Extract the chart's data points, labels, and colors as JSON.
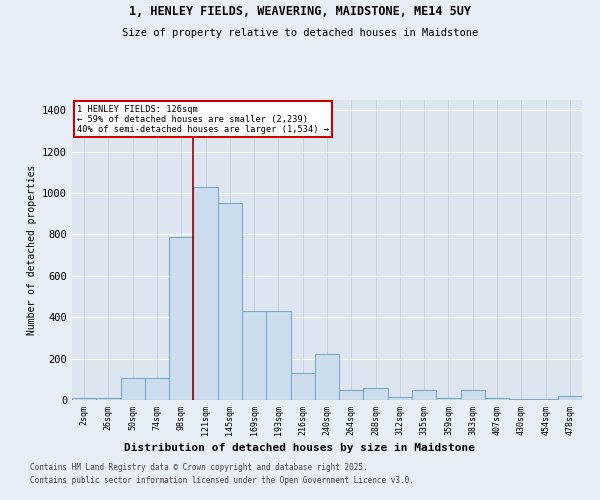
{
  "title1": "1, HENLEY FIELDS, WEAVERING, MAIDSTONE, ME14 5UY",
  "title2": "Size of property relative to detached houses in Maidstone",
  "xlabel": "Distribution of detached houses by size in Maidstone",
  "ylabel": "Number of detached properties",
  "categories": [
    "2sqm",
    "26sqm",
    "50sqm",
    "74sqm",
    "98sqm",
    "121sqm",
    "145sqm",
    "169sqm",
    "193sqm",
    "216sqm",
    "240sqm",
    "264sqm",
    "288sqm",
    "312sqm",
    "335sqm",
    "359sqm",
    "383sqm",
    "407sqm",
    "430sqm",
    "454sqm",
    "478sqm"
  ],
  "values": [
    10,
    10,
    105,
    105,
    790,
    1030,
    950,
    430,
    430,
    130,
    220,
    50,
    60,
    15,
    50,
    10,
    50,
    10,
    5,
    5,
    20
  ],
  "bar_color": "#ccdded",
  "bar_edge_color": "#7aaac8",
  "vline_color": "#990000",
  "vline_x_index": 5,
  "annotation_title": "1 HENLEY FIELDS: 126sqm",
  "annotation_line1": "← 59% of detached houses are smaller (2,239)",
  "annotation_line2": "40% of semi-detached houses are larger (1,534) →",
  "annotation_box_color": "white",
  "annotation_box_edge": "#cc0000",
  "footnote1": "Contains HM Land Registry data © Crown copyright and database right 2025.",
  "footnote2": "Contains public sector information licensed under the Open Government Licence v3.0.",
  "ylim": [
    0,
    1450
  ],
  "yticks": [
    0,
    200,
    400,
    600,
    800,
    1000,
    1200,
    1400
  ],
  "bg_color": "#e8eef5",
  "plot_bg_color": "#dde6f0",
  "grid_color": "#c0cdd8"
}
